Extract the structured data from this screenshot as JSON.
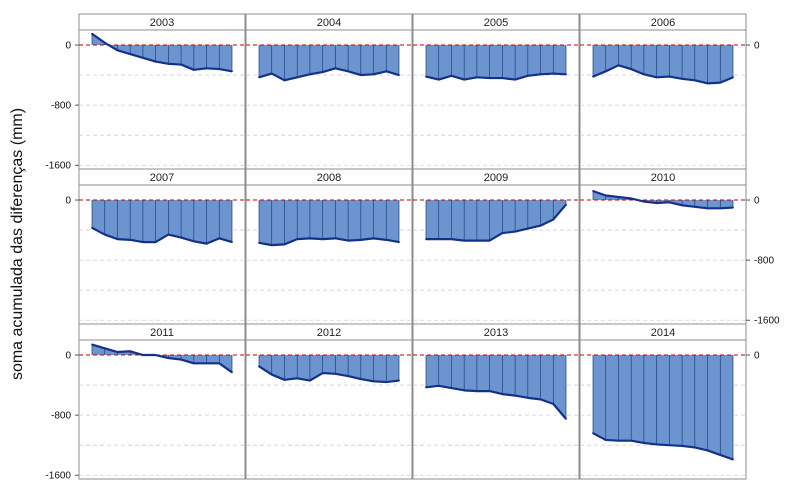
{
  "chart_data": {
    "type": "area",
    "ylabel": "soma acumulada das diferenças (mm)",
    "y_ticks": [
      0,
      -800,
      -1600
    ],
    "y_tick_labels": [
      "0",
      "-800",
      "-1600"
    ],
    "ylim": [
      -1650,
      200
    ],
    "grid_values": [
      0,
      -400,
      -800,
      -1200,
      -1600
    ],
    "x": [
      1,
      2,
      3,
      4,
      5,
      6,
      7,
      8,
      9,
      10,
      11,
      12
    ],
    "colors": {
      "fill": "#6c95d0",
      "line": "#14318a",
      "zero_line": "#c00000"
    },
    "panels": [
      {
        "year": "2003",
        "values": [
          150,
          30,
          -70,
          -120,
          -170,
          -220,
          -250,
          -260,
          -330,
          -310,
          -320,
          -350
        ]
      },
      {
        "year": "2004",
        "values": [
          -430,
          -380,
          -470,
          -430,
          -390,
          -360,
          -310,
          -350,
          -400,
          -390,
          -350,
          -400
        ]
      },
      {
        "year": "2005",
        "values": [
          -420,
          -460,
          -410,
          -460,
          -430,
          -440,
          -440,
          -460,
          -410,
          -390,
          -380,
          -390
        ]
      },
      {
        "year": "2006",
        "values": [
          -420,
          -350,
          -270,
          -320,
          -390,
          -430,
          -420,
          -450,
          -470,
          -510,
          -500,
          -430
        ]
      },
      {
        "year": "2007",
        "values": [
          -370,
          -460,
          -520,
          -530,
          -560,
          -560,
          -460,
          -500,
          -550,
          -580,
          -510,
          -560
        ]
      },
      {
        "year": "2008",
        "values": [
          -570,
          -600,
          -590,
          -520,
          -510,
          -520,
          -510,
          -540,
          -530,
          -510,
          -530,
          -560
        ]
      },
      {
        "year": "2009",
        "values": [
          -520,
          -520,
          -520,
          -540,
          -540,
          -540,
          -440,
          -420,
          -380,
          -340,
          -260,
          -60
        ]
      },
      {
        "year": "2010",
        "values": [
          120,
          60,
          40,
          20,
          -20,
          -40,
          -30,
          -70,
          -90,
          -110,
          -110,
          -100
        ]
      },
      {
        "year": "2011",
        "values": [
          140,
          90,
          40,
          50,
          0,
          0,
          -40,
          -60,
          -110,
          -110,
          -110,
          -230
        ]
      },
      {
        "year": "2012",
        "values": [
          -150,
          -260,
          -330,
          -310,
          -340,
          -240,
          -250,
          -280,
          -320,
          -350,
          -360,
          -340
        ]
      },
      {
        "year": "2013",
        "values": [
          -430,
          -410,
          -440,
          -470,
          -480,
          -480,
          -520,
          -540,
          -570,
          -590,
          -650,
          -850
        ]
      },
      {
        "year": "2014",
        "values": [
          -1040,
          -1130,
          -1140,
          -1140,
          -1170,
          -1190,
          -1200,
          -1210,
          -1230,
          -1270,
          -1330,
          -1390
        ]
      }
    ]
  }
}
